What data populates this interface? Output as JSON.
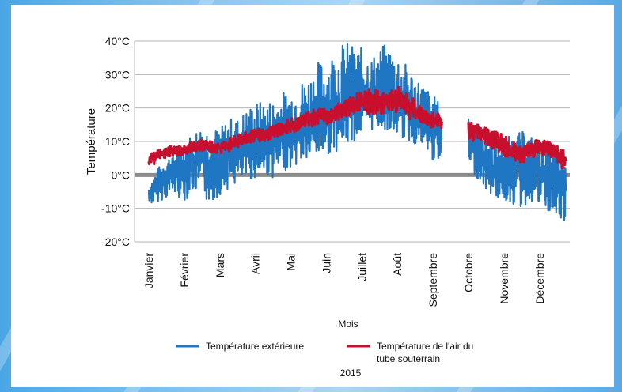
{
  "chart_data": {
    "type": "line",
    "title": "",
    "xlabel": "Mois",
    "ylabel": "Température",
    "ylim": [
      -20,
      40
    ],
    "y_ticks": [
      "40°C",
      "30°C",
      "20°C",
      "10°C",
      "0°C",
      "-10°C",
      "-20°C"
    ],
    "y_tick_values": [
      40,
      30,
      20,
      10,
      0,
      -10,
      -20
    ],
    "categories": [
      "Janvier",
      "Février",
      "Mars",
      "Avril",
      "Mai",
      "Juin",
      "Juillet",
      "Août",
      "Septembre",
      "Octobre",
      "Novembre",
      "Décembre"
    ],
    "grid": true,
    "legend_position": "bottom",
    "footer": "2015",
    "series": [
      {
        "name": "Température extérieure",
        "color": "#1f77c4",
        "x": [
          0,
          0.25,
          0.5,
          0.75,
          1,
          1.25,
          1.5,
          1.75,
          2,
          2.25,
          2.5,
          2.75,
          3,
          3.25,
          3.5,
          3.75,
          4,
          4.25,
          4.5,
          4.75,
          5,
          5.25,
          5.5,
          5.75,
          6,
          6.25,
          6.5,
          6.75,
          7,
          7.25,
          7.5,
          7.75,
          8,
          8.25,
          8.5,
          8.75,
          9,
          9.25,
          9.5,
          9.75,
          10,
          10.25,
          10.5,
          10.75,
          11,
          11.25,
          11.5,
          11.75
        ],
        "y": [
          -6,
          -3,
          0,
          1,
          2,
          4,
          5,
          3,
          4,
          6,
          7,
          8,
          9,
          10,
          10,
          11,
          12,
          14,
          15,
          16,
          17,
          19,
          20,
          22,
          23,
          24,
          22,
          20,
          21,
          19,
          18,
          16,
          13,
          11,
          null,
          null,
          10,
          8,
          4,
          1,
          2,
          3,
          4,
          3,
          1,
          0,
          -2,
          -4
        ],
        "y_upper": [
          -3,
          2,
          5,
          8,
          10,
          13,
          15,
          14,
          14,
          17,
          17,
          20,
          22,
          22,
          23,
          25,
          26,
          28,
          30,
          34,
          35,
          38,
          40,
          39,
          38,
          35,
          38,
          40,
          37,
          33,
          30,
          27,
          24,
          21,
          null,
          null,
          19,
          16,
          13,
          10,
          11,
          12,
          13,
          12,
          10,
          8,
          7,
          6
        ],
        "y_lower": [
          -9,
          -8,
          -7,
          -6,
          -8,
          -5,
          -7,
          -9,
          -6,
          -4,
          -3,
          -2,
          -1,
          0,
          -1,
          1,
          2,
          3,
          4,
          5,
          6,
          7,
          8,
          10,
          11,
          13,
          14,
          13,
          12,
          10,
          9,
          7,
          4,
          2,
          null,
          null,
          1,
          -1,
          -5,
          -7,
          -8,
          -9,
          -11,
          -8,
          -10,
          -12,
          -14,
          -16
        ]
      },
      {
        "name": "Température de l'air du tube souterrain",
        "color": "#c8102e",
        "x": [
          0,
          0.25,
          0.5,
          0.75,
          1,
          1.25,
          1.5,
          1.75,
          2,
          2.25,
          2.5,
          2.75,
          3,
          3.25,
          3.5,
          3.75,
          4,
          4.25,
          4.5,
          4.75,
          5,
          5.25,
          5.5,
          5.75,
          6,
          6.25,
          6.5,
          6.75,
          7,
          7.25,
          7.5,
          7.75,
          8,
          8.25,
          8.5,
          8.75,
          9,
          9.25,
          9.5,
          9.75,
          10,
          10.25,
          10.5,
          10.75,
          11,
          11.25,
          11.5,
          11.75
        ],
        "y": [
          4,
          6,
          7,
          7.5,
          7.5,
          8,
          9,
          8.5,
          8,
          9,
          10,
          11,
          12,
          12,
          13,
          14,
          15,
          16,
          17,
          18,
          18,
          19,
          20,
          21,
          22,
          23,
          23,
          22,
          22,
          21,
          19,
          18,
          17,
          16,
          null,
          null,
          14,
          13,
          12,
          10,
          8,
          7,
          6,
          8,
          9,
          8,
          6,
          4
        ],
        "y_upper": [
          6,
          7.5,
          8.5,
          9,
          9,
          10,
          11,
          10,
          10,
          11,
          12,
          13,
          14,
          14,
          15,
          16,
          17,
          18,
          19,
          20,
          20,
          21,
          22,
          24,
          25,
          26,
          25,
          24,
          28,
          25,
          22,
          20,
          19,
          18,
          null,
          null,
          16,
          15,
          14,
          13,
          12,
          10,
          8,
          10,
          11,
          10,
          9,
          7
        ],
        "y_lower": [
          2,
          4,
          5,
          6,
          6,
          7,
          7,
          7,
          6,
          7,
          8,
          9,
          10,
          10,
          11,
          12,
          12,
          13,
          14,
          15,
          15,
          16,
          17,
          18,
          18,
          18,
          18,
          19,
          18,
          17,
          16,
          15,
          14,
          13,
          null,
          null,
          10,
          10,
          9,
          7,
          5,
          4,
          3,
          5,
          6,
          5,
          3,
          1
        ]
      }
    ]
  }
}
